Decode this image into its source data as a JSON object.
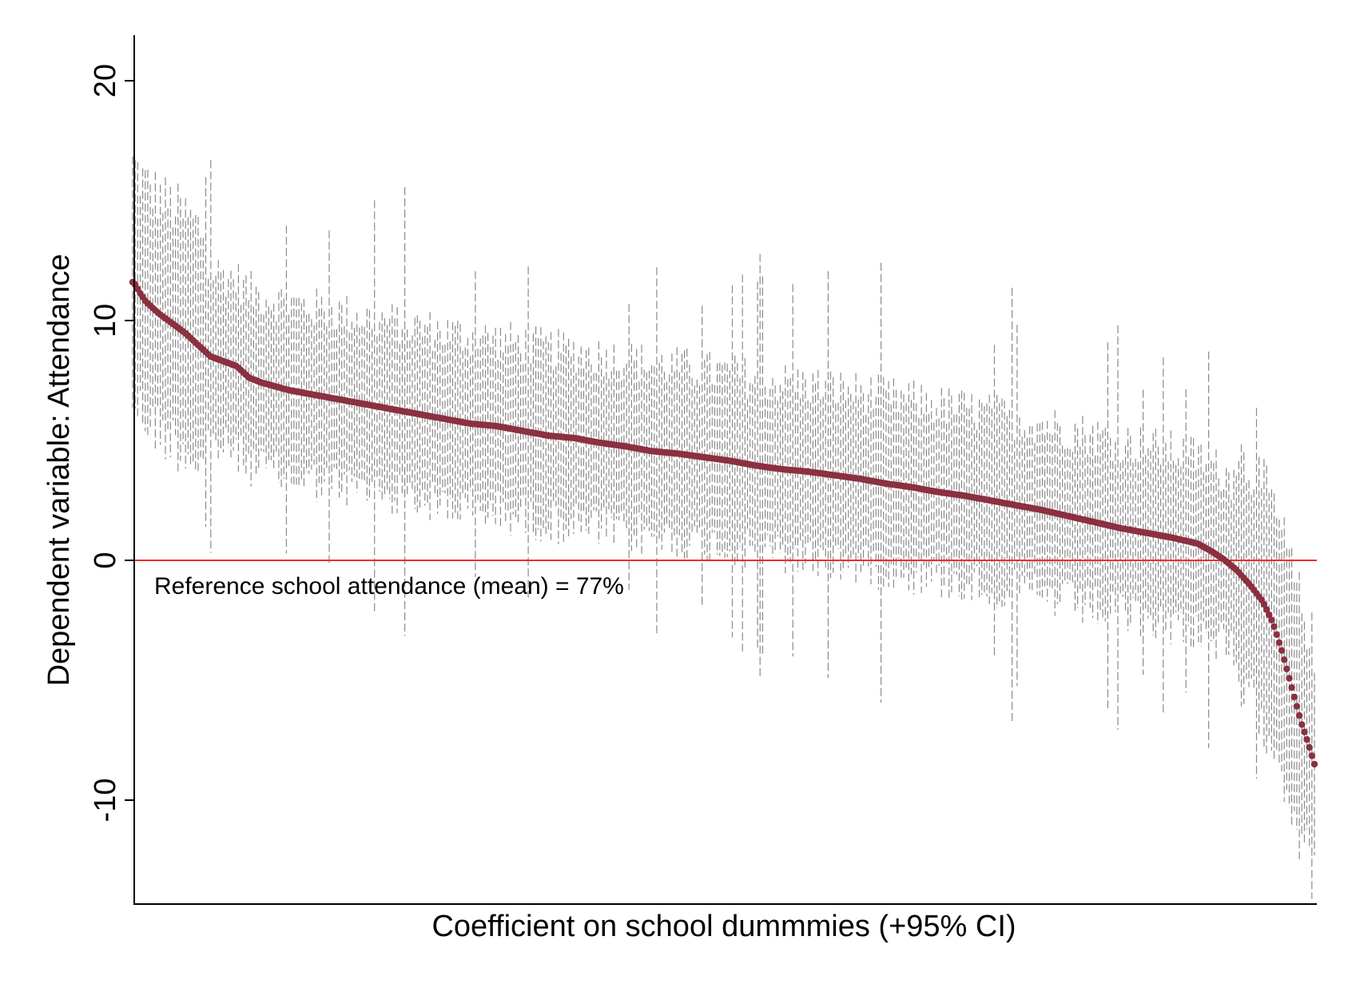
{
  "chart_data": {
    "type": "scatter",
    "title": "",
    "xlabel": "Coefficient on school dummmies (+95% CI)",
    "ylabel": "Dependent variable: Attendance",
    "ylim": [
      -14.3,
      22
    ],
    "yticks": [
      20,
      10,
      0,
      -10
    ],
    "ytick_labels": [
      "20",
      "10",
      "0",
      "-10"
    ],
    "grid": false,
    "legend": "none",
    "reference_line": {
      "y": 0,
      "color": "#e8302a"
    },
    "annotation": "Reference school attendance (mean) = 77%",
    "colors": {
      "point": "#8b3040",
      "ci": "#8a8a8a",
      "axis": "#000000"
    },
    "n_schools": 470,
    "x_order": "schools ranked by coefficient (descending)",
    "x_index_range": [
      1,
      470
    ],
    "series": [
      {
        "kind": "point-estimate",
        "points": [
          [
            1,
            11.6
          ],
          [
            5,
            11.2
          ],
          [
            10,
            10.8
          ],
          [
            20,
            10.3
          ],
          [
            30,
            9.9
          ],
          [
            40,
            9.5
          ],
          [
            50,
            9.0
          ],
          [
            60,
            8.5
          ],
          [
            70,
            8.3
          ],
          [
            80,
            8.1
          ],
          [
            90,
            7.6
          ],
          [
            100,
            7.4
          ],
          [
            120,
            7.1
          ],
          [
            140,
            6.9
          ],
          [
            160,
            6.7
          ],
          [
            180,
            6.5
          ],
          [
            200,
            6.3
          ],
          [
            220,
            6.1
          ],
          [
            240,
            5.9
          ],
          [
            260,
            5.7
          ],
          [
            280,
            5.6
          ],
          [
            300,
            5.4
          ],
          [
            320,
            5.2
          ],
          [
            340,
            5.1
          ],
          [
            360,
            4.9
          ],
          [
            380,
            4.75
          ],
          [
            400,
            4.55
          ],
          [
            420,
            4.45
          ],
          [
            440,
            4.3
          ],
          [
            460,
            4.15
          ],
          [
            480,
            3.95
          ],
          [
            500,
            3.8
          ],
          [
            520,
            3.7
          ],
          [
            540,
            3.55
          ],
          [
            560,
            3.4
          ],
          [
            580,
            3.2
          ],
          [
            600,
            3.05
          ],
          [
            620,
            2.85
          ],
          [
            640,
            2.7
          ],
          [
            660,
            2.5
          ],
          [
            680,
            2.3
          ],
          [
            700,
            2.1
          ],
          [
            720,
            1.85
          ],
          [
            740,
            1.6
          ],
          [
            760,
            1.35
          ],
          [
            780,
            1.15
          ],
          [
            800,
            0.95
          ],
          [
            820,
            0.7
          ],
          [
            830,
            0.4
          ],
          [
            840,
            0.05
          ],
          [
            850,
            -0.4
          ],
          [
            860,
            -1.0
          ],
          [
            870,
            -1.7
          ],
          [
            878,
            -2.6
          ],
          [
            885,
            -3.8
          ],
          [
            890,
            -4.8
          ],
          [
            895,
            -5.8
          ],
          [
            900,
            -6.8
          ],
          [
            905,
            -7.6
          ],
          [
            910,
            -8.5
          ]
        ],
        "x_points_scale_max": 910,
        "avg_ci_halfwidth": 3.6
      }
    ]
  }
}
